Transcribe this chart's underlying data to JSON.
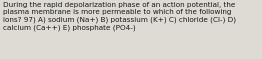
{
  "line1": "During the rapid depolarization phase of an action potential, the",
  "line2": "plasma membrane is more permeable to which of the following",
  "line3": "ions? 97) A) sodium (Na+) B) potassium (K+) C) chloride (Cl-) D)",
  "line4": "calcium (Ca++) E) phosphate (PO4-)",
  "bg_color": "#dedad4",
  "text_color": "#1a1a1a",
  "font_size": 5.2,
  "fig_width": 2.62,
  "fig_height": 0.59,
  "dpi": 100
}
